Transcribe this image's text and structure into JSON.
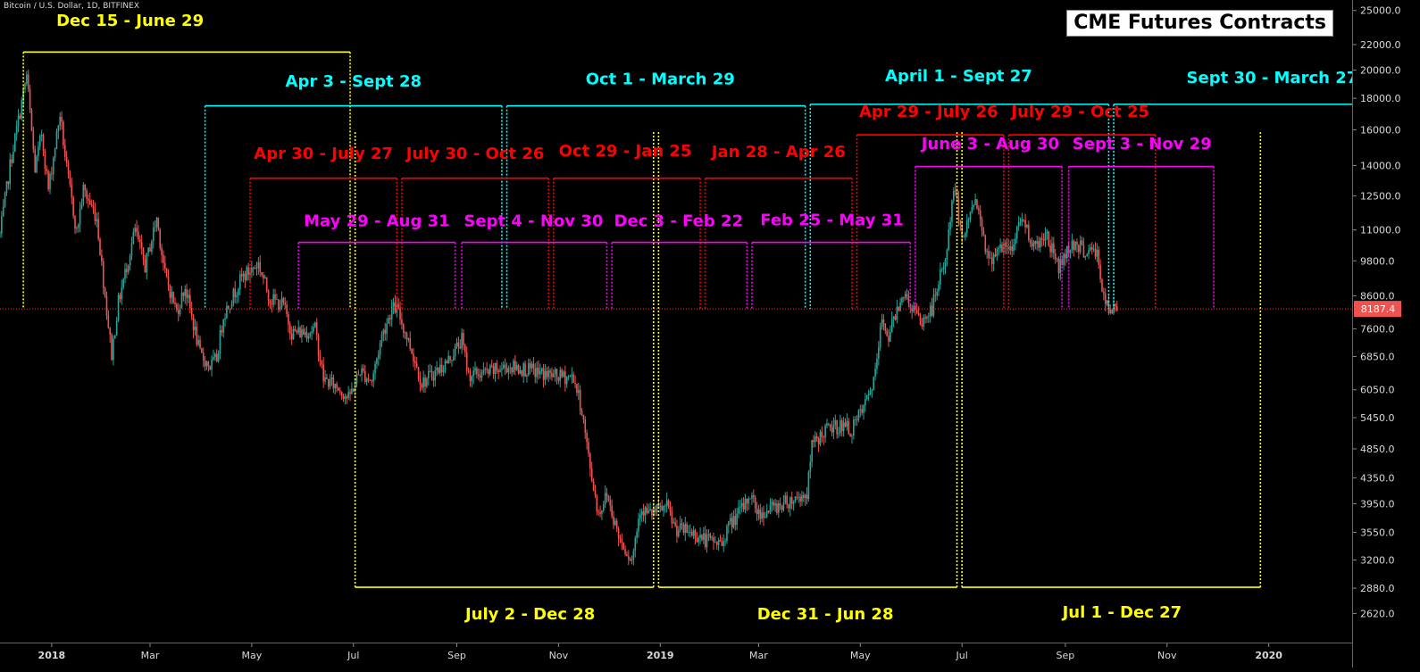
{
  "header": {
    "symbol": "Bitcoin / U.S. Dollar, 1D, BITFINEX",
    "title": "CME Futures Contracts"
  },
  "colors": {
    "background": "#000000",
    "up_candle": "#26a69a",
    "down_candle": "#ef5350",
    "yellow": "#ffff00",
    "cyan": "#00ffff",
    "red": "#ff0000",
    "magenta": "#ff00ff",
    "price_line": "#ff3333",
    "price_tag": "#ef5350"
  },
  "chart_data": {
    "type": "candlestick",
    "scale": "log",
    "xlim": [
      "2017-12-01",
      "2020-02-20"
    ],
    "ylim": [
      2350,
      26000
    ],
    "x_ticks": [
      {
        "date": "2018-01-01",
        "label": "2018"
      },
      {
        "date": "2018-03-01",
        "label": "Mar"
      },
      {
        "date": "2018-05-01",
        "label": "May"
      },
      {
        "date": "2018-07-01",
        "label": "Jul"
      },
      {
        "date": "2018-09-01",
        "label": "Sep"
      },
      {
        "date": "2018-11-01",
        "label": "Nov"
      },
      {
        "date": "2019-01-01",
        "label": "2019"
      },
      {
        "date": "2019-03-01",
        "label": "Mar"
      },
      {
        "date": "2019-05-01",
        "label": "May"
      },
      {
        "date": "2019-07-01",
        "label": "Jul"
      },
      {
        "date": "2019-09-01",
        "label": "Sep"
      },
      {
        "date": "2019-11-01",
        "label": "Nov"
      },
      {
        "date": "2020-01-01",
        "label": "2020"
      }
    ],
    "y_ticks": [
      25000,
      22000,
      20000,
      18000,
      16000,
      14000,
      12500,
      11000,
      9800,
      8600,
      7600,
      6850,
      6050,
      5450,
      4850,
      4350,
      3950,
      3550,
      3200,
      2880,
      2620
    ],
    "current_price": 8187.4,
    "price_path": [
      [
        "2017-12-01",
        10800
      ],
      [
        "2017-12-07",
        14000
      ],
      [
        "2017-12-10",
        15500
      ],
      [
        "2017-12-17",
        19600
      ],
      [
        "2017-12-22",
        13800
      ],
      [
        "2017-12-26",
        15800
      ],
      [
        "2017-12-30",
        12800
      ],
      [
        "2018-01-06",
        17000
      ],
      [
        "2018-01-10",
        13800
      ],
      [
        "2018-01-16",
        10900
      ],
      [
        "2018-01-20",
        12800
      ],
      [
        "2018-01-28",
        11500
      ],
      [
        "2018-02-01",
        9100
      ],
      [
        "2018-02-06",
        6900
      ],
      [
        "2018-02-10",
        8400
      ],
      [
        "2018-02-20",
        11000
      ],
      [
        "2018-02-26",
        9600
      ],
      [
        "2018-03-05",
        11500
      ],
      [
        "2018-03-10",
        9300
      ],
      [
        "2018-03-17",
        8100
      ],
      [
        "2018-03-22",
        8900
      ],
      [
        "2018-03-31",
        6900
      ],
      [
        "2018-04-06",
        6600
      ],
      [
        "2018-04-10",
        6800
      ],
      [
        "2018-04-14",
        8000
      ],
      [
        "2018-04-25",
        9200
      ],
      [
        "2018-05-05",
        9700
      ],
      [
        "2018-05-12",
        8500
      ],
      [
        "2018-05-20",
        8300
      ],
      [
        "2018-05-25",
        7500
      ],
      [
        "2018-06-01",
        7500
      ],
      [
        "2018-06-08",
        7600
      ],
      [
        "2018-06-13",
        6300
      ],
      [
        "2018-06-22",
        6100
      ],
      [
        "2018-06-28",
        5850
      ],
      [
        "2018-07-05",
        6500
      ],
      [
        "2018-07-12",
        6250
      ],
      [
        "2018-07-18",
        7400
      ],
      [
        "2018-07-24",
        8200
      ],
      [
        "2018-07-27",
        8200
      ],
      [
        "2018-08-05",
        7000
      ],
      [
        "2018-08-11",
        6200
      ],
      [
        "2018-08-17",
        6400
      ],
      [
        "2018-08-26",
        6700
      ],
      [
        "2018-09-04",
        7300
      ],
      [
        "2018-09-08",
        6400
      ],
      [
        "2018-09-20",
        6450
      ],
      [
        "2018-10-01",
        6600
      ],
      [
        "2018-10-10",
        6550
      ],
      [
        "2018-10-20",
        6450
      ],
      [
        "2018-11-01",
        6350
      ],
      [
        "2018-11-10",
        6350
      ],
      [
        "2018-11-15",
        5600
      ],
      [
        "2018-11-20",
        4500
      ],
      [
        "2018-11-25",
        3800
      ],
      [
        "2018-11-30",
        4100
      ],
      [
        "2018-12-07",
        3500
      ],
      [
        "2018-12-15",
        3200
      ],
      [
        "2018-12-20",
        3900
      ],
      [
        "2018-12-25",
        3800
      ],
      [
        "2019-01-05",
        3900
      ],
      [
        "2019-01-10",
        3600
      ],
      [
        "2019-01-20",
        3550
      ],
      [
        "2019-01-28",
        3450
      ],
      [
        "2019-02-07",
        3400
      ],
      [
        "2019-02-10",
        3600
      ],
      [
        "2019-02-20",
        3900
      ],
      [
        "2019-02-24",
        4100
      ],
      [
        "2019-03-01",
        3800
      ],
      [
        "2019-03-15",
        3950
      ],
      [
        "2019-03-30",
        4100
      ],
      [
        "2019-04-02",
        4900
      ],
      [
        "2019-04-10",
        5200
      ],
      [
        "2019-04-20",
        5300
      ],
      [
        "2019-04-26",
        5200
      ],
      [
        "2019-05-05",
        5800
      ],
      [
        "2019-05-10",
        6400
      ],
      [
        "2019-05-14",
        7900
      ],
      [
        "2019-05-18",
        7400
      ],
      [
        "2019-05-26",
        8700
      ],
      [
        "2019-06-03",
        8100
      ],
      [
        "2019-06-06",
        7700
      ],
      [
        "2019-06-13",
        8200
      ],
      [
        "2019-06-22",
        10200
      ],
      [
        "2019-06-26",
        12900
      ],
      [
        "2019-07-02",
        10600
      ],
      [
        "2019-07-08",
        12400
      ],
      [
        "2019-07-12",
        11600
      ],
      [
        "2019-07-17",
        9700
      ],
      [
        "2019-07-22",
        10300
      ],
      [
        "2019-07-31",
        10200
      ],
      [
        "2019-08-05",
        11600
      ],
      [
        "2019-08-14",
        10300
      ],
      [
        "2019-08-20",
        10900
      ],
      [
        "2019-08-28",
        9600
      ],
      [
        "2019-09-05",
        10500
      ],
      [
        "2019-09-12",
        10200
      ],
      [
        "2019-09-20",
        10100
      ],
      [
        "2019-09-24",
        8500
      ],
      [
        "2019-09-27",
        8100
      ],
      [
        "2019-10-02",
        8200
      ]
    ],
    "contract_lines": [
      {
        "color": "yellow",
        "start": "2017-12-15",
        "end": "2018-06-29",
        "level_price": 21400,
        "side": "top",
        "label": "Dec 15 - June 29",
        "label_x": "2018-02-17",
        "label_price": 23600
      },
      {
        "color": "yellow",
        "start": "2018-07-02",
        "end": "2018-12-28",
        "level_price": 2890,
        "side": "bottom",
        "label": "July 2 - Dec 28",
        "label_x": "2018-10-15",
        "label_price": 2565
      },
      {
        "color": "yellow",
        "start": "2018-12-31",
        "end": "2019-06-28",
        "level_price": 2890,
        "side": "bottom",
        "label": "Dec 31 - Jun 28",
        "label_x": "2019-04-10",
        "label_price": 2565
      },
      {
        "color": "yellow",
        "start": "2019-07-01",
        "end": "2019-12-27",
        "level_price": 2890,
        "side": "bottom",
        "label": "Jul 1 - Dec 27",
        "label_x": "2019-10-05",
        "label_price": 2580
      },
      {
        "color": "cyan",
        "start": "2018-04-03",
        "end": "2018-09-28",
        "level_price": 17500,
        "side": "top",
        "label": "Apr 3 - Sept 28",
        "label_x": "2018-07-01",
        "label_price": 18800
      },
      {
        "color": "cyan",
        "start": "2018-10-01",
        "end": "2019-03-29",
        "level_price": 17500,
        "side": "top",
        "label": "Oct 1 - March 29",
        "label_x": "2019-01-01",
        "label_price": 18950
      },
      {
        "color": "cyan",
        "start": "2019-04-01",
        "end": "2019-09-27",
        "level_price": 17600,
        "side": "top",
        "label": "April 1 - Sept 27",
        "label_x": "2019-06-29",
        "label_price": 19200
      },
      {
        "color": "cyan",
        "start": "2019-09-30",
        "end": "2020-03-27",
        "level_price": 17600,
        "side": "top",
        "label": "Sept 30 - March 27",
        "label_x": "2020-01-03",
        "label_price": 19050
      },
      {
        "color": "red",
        "start": "2018-04-30",
        "end": "2018-07-27",
        "level_price": 13350,
        "side": "top",
        "label": "Apr 30 - July 27",
        "label_x": "2018-06-13",
        "label_price": 14350
      },
      {
        "color": "red",
        "start": "2018-07-30",
        "end": "2018-10-26",
        "level_price": 13350,
        "side": "top",
        "label": "July 30 - Oct 26",
        "label_x": "2018-09-12",
        "label_price": 14350
      },
      {
        "color": "red",
        "start": "2018-10-29",
        "end": "2019-01-25",
        "level_price": 13350,
        "side": "top",
        "label": "Oct 29 - Jan 25",
        "label_x": "2018-12-11",
        "label_price": 14500
      },
      {
        "color": "red",
        "start": "2019-01-28",
        "end": "2019-04-26",
        "level_price": 13350,
        "side": "top",
        "label": "Jan 28 - Apr 26",
        "label_x": "2019-03-13",
        "label_price": 14450
      },
      {
        "color": "red",
        "start": "2019-04-29",
        "end": "2019-07-26",
        "level_price": 15700,
        "side": "top",
        "label": "Apr 29 - July 26",
        "label_x": "2019-06-11",
        "label_price": 16800
      },
      {
        "color": "red",
        "start": "2019-07-29",
        "end": "2019-10-25",
        "level_price": 15700,
        "side": "top",
        "label": "July 29 - Oct 25",
        "label_x": "2019-09-10",
        "label_price": 16800
      },
      {
        "color": "magenta",
        "start": "2018-05-29",
        "end": "2018-08-31",
        "level_price": 10500,
        "side": "top",
        "label": "May 29 - Aug 31",
        "label_x": "2018-07-15",
        "label_price": 11150
      },
      {
        "color": "magenta",
        "start": "2018-09-04",
        "end": "2018-11-30",
        "level_price": 10500,
        "side": "top",
        "label": "Sept 4 - Nov 30",
        "label_x": "2018-10-17",
        "label_price": 11150
      },
      {
        "color": "magenta",
        "start": "2018-12-03",
        "end": "2019-02-22",
        "level_price": 10500,
        "side": "top",
        "label": "Dec 3 - Feb 22",
        "label_x": "2019-01-12",
        "label_price": 11150
      },
      {
        "color": "magenta",
        "start": "2019-02-25",
        "end": "2019-05-31",
        "level_price": 10500,
        "side": "top",
        "label": "Feb 25 - May 31",
        "label_x": "2019-04-14",
        "label_price": 11200
      },
      {
        "color": "magenta",
        "start": "2019-06-03",
        "end": "2019-08-30",
        "level_price": 13950,
        "side": "top",
        "label": "June 3 - Aug 30",
        "label_x": "2019-07-18",
        "label_price": 14900
      },
      {
        "color": "magenta",
        "start": "2019-09-03",
        "end": "2019-11-29",
        "level_price": 13950,
        "side": "top",
        "label": "Sept 3 - Nov 29",
        "label_x": "2019-10-17",
        "label_price": 14900
      }
    ]
  }
}
